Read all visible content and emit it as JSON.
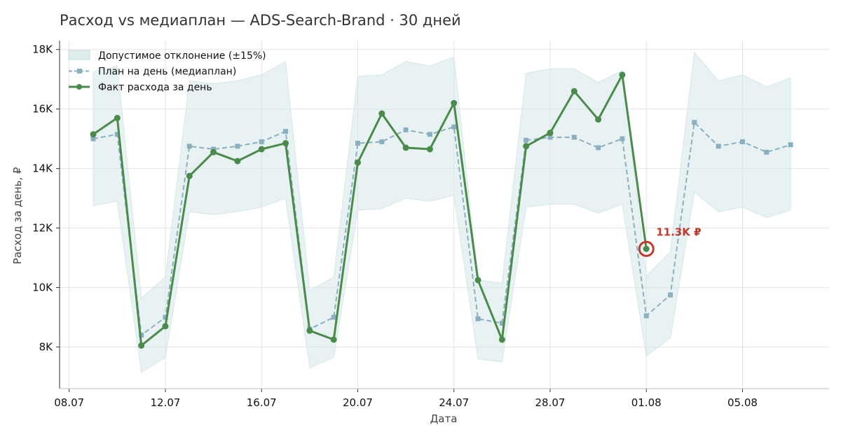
{
  "chart_data": {
    "type": "line",
    "title": "Расход vs медиаплан — ADS-Search-Brand · 30 дней",
    "xlabel": "Дата",
    "ylabel": "Расход за день, ₽",
    "x_tick_labels": [
      "08.07",
      "12.07",
      "16.07",
      "20.07",
      "24.07",
      "28.07",
      "01.08",
      "05.08"
    ],
    "y_tick_labels": [
      "8K",
      "10K",
      "12K",
      "14K",
      "16K",
      "18K"
    ],
    "y_ticks": [
      8000,
      10000,
      12000,
      14000,
      16000,
      18000
    ],
    "ylim": [
      6600,
      18300
    ],
    "x_range_days": [
      -0.4,
      31.6
    ],
    "x_tick_days": [
      0,
      4,
      8,
      12,
      16,
      20,
      24,
      28
    ],
    "x": [
      "09.07",
      "10.07",
      "11.07",
      "12.07",
      "13.07",
      "14.07",
      "15.07",
      "16.07",
      "17.07",
      "18.07",
      "19.07",
      "20.07",
      "21.07",
      "22.07",
      "23.07",
      "24.07",
      "25.07",
      "26.07",
      "27.07",
      "28.07",
      "29.07",
      "30.07",
      "31.07",
      "01.08",
      "02.08",
      "03.08",
      "04.08",
      "05.08",
      "06.08",
      "07.08"
    ],
    "grid": true,
    "legend_position": "top-left",
    "colors": {
      "plan": "#8ab0c0",
      "fact": "#4a8a4a",
      "band": "#d5e8ea",
      "highlight": "#c0392b"
    },
    "series": [
      {
        "name": "Допустимое отклонение (±15%)",
        "kind": "band",
        "lower": [
          12750,
          12900,
          7150,
          7650,
          12550,
          12450,
          12550,
          12700,
          13000,
          7300,
          7650,
          12600,
          12650,
          13000,
          12900,
          13100,
          7600,
          7500,
          12700,
          12800,
          12800,
          12500,
          12800,
          7700,
          8300,
          13200,
          12550,
          12700,
          12350,
          12600
        ],
        "upper": [
          17250,
          17450,
          9650,
          10350,
          16950,
          16850,
          16950,
          17150,
          17600,
          9900,
          10350,
          17100,
          17150,
          17600,
          17450,
          17750,
          10250,
          10150,
          17200,
          17350,
          17350,
          16900,
          17300,
          10400,
          11200,
          17900,
          16950,
          17150,
          16750,
          17050
        ]
      },
      {
        "name": "План на день (медиаплан)",
        "kind": "line",
        "values": [
          15000,
          15150,
          8400,
          9000,
          14750,
          14650,
          14750,
          14900,
          15250,
          8600,
          9000,
          14850,
          14900,
          15300,
          15150,
          15400,
          8950,
          8800,
          14950,
          15050,
          15050,
          14700,
          15000,
          9050,
          9750,
          15550,
          14750,
          14900,
          14550,
          14800
        ]
      },
      {
        "name": "Факт расхода за день",
        "kind": "line",
        "values": [
          15150,
          15700,
          8050,
          8700,
          13750,
          14550,
          14250,
          14650,
          14850,
          8550,
          8250,
          14200,
          15850,
          14700,
          14650,
          16200,
          10250,
          8250,
          14750,
          15200,
          16600,
          15650,
          17150,
          11300,
          null,
          null,
          null,
          null,
          null,
          null
        ]
      }
    ],
    "annotations": [
      {
        "text": "11.3K ₽",
        "x": "01.08",
        "y": 11300
      }
    ]
  }
}
